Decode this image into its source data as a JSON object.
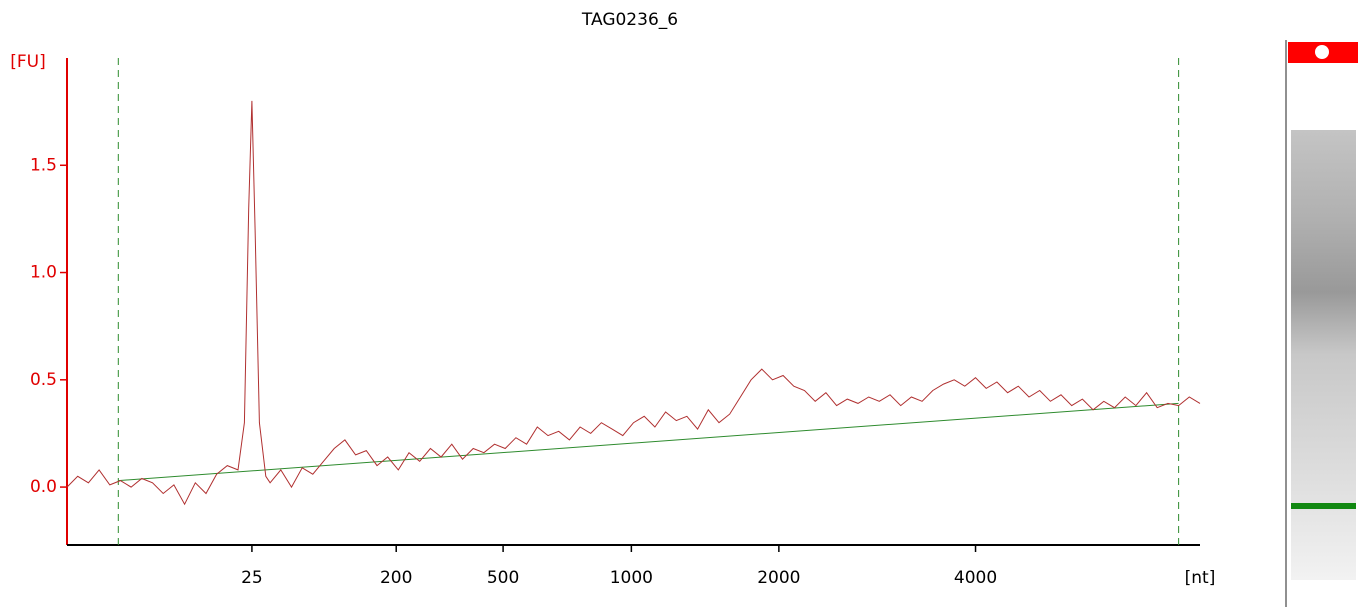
{
  "chart_data": {
    "type": "line",
    "title": "TAG0236_6",
    "y_label": "[FU]",
    "x_label": "[nt]",
    "x": [
      17,
      17.5,
      18,
      18.5,
      19,
      19.5,
      20,
      20.5,
      21,
      21.5,
      22,
      22.5,
      23,
      23.5,
      24,
      24.5,
      25,
      25.3,
      25.5,
      25.65,
      25.8,
      26.0,
      26.3,
      26.5,
      27,
      27.5,
      28,
      28.5,
      29,
      29.5,
      30,
      30.5,
      31,
      31.5,
      32,
      32.5,
      33,
      33.5,
      34,
      34.5,
      35,
      35.5,
      36,
      36.5,
      37,
      37.5,
      38,
      38.5,
      39,
      39.5,
      40,
      40.5,
      41,
      41.5,
      42,
      42.5,
      43,
      43.5,
      44,
      44.5,
      45,
      45.5,
      46,
      46.5,
      47,
      47.5,
      48,
      48.5,
      49,
      49.5,
      50,
      50.5,
      51,
      51.5,
      52,
      52.5,
      53,
      53.5,
      54,
      54.5,
      55,
      55.5,
      56,
      56.5,
      57,
      57.5,
      58,
      58.5,
      59,
      59.5,
      60,
      60.5,
      61,
      61.5,
      62,
      62.5,
      63,
      63.5,
      64,
      64.5,
      65,
      65.5,
      66,
      66.5,
      67,
      67.5,
      68,
      68.5,
      69,
      69.5,
      70
    ],
    "series": [
      {
        "color": "#b03030",
        "values": [
          0.0,
          0.05,
          0.02,
          0.08,
          0.01,
          0.03,
          0.0,
          0.04,
          0.02,
          -0.03,
          0.01,
          -0.08,
          0.02,
          -0.03,
          0.06,
          0.1,
          0.08,
          0.3,
          1.3,
          1.8,
          1.2,
          0.3,
          0.05,
          0.02,
          0.08,
          0.0,
          0.09,
          0.06,
          0.12,
          0.18,
          0.22,
          0.15,
          0.17,
          0.1,
          0.14,
          0.08,
          0.16,
          0.12,
          0.18,
          0.14,
          0.2,
          0.13,
          0.18,
          0.16,
          0.2,
          0.18,
          0.23,
          0.2,
          0.28,
          0.24,
          0.26,
          0.22,
          0.28,
          0.25,
          0.3,
          0.27,
          0.24,
          0.3,
          0.33,
          0.28,
          0.35,
          0.31,
          0.33,
          0.27,
          0.36,
          0.3,
          0.34,
          0.42,
          0.5,
          0.55,
          0.5,
          0.52,
          0.47,
          0.45,
          0.4,
          0.44,
          0.38,
          0.41,
          0.39,
          0.42,
          0.4,
          0.43,
          0.38,
          0.42,
          0.4,
          0.45,
          0.48,
          0.5,
          0.47,
          0.51,
          0.46,
          0.49,
          0.44,
          0.47,
          0.42,
          0.45,
          0.4,
          0.43,
          0.38,
          0.41,
          0.36,
          0.4,
          0.37,
          0.42,
          0.38,
          0.44,
          0.37,
          0.39,
          0.38,
          0.42,
          0.39
        ]
      }
    ],
    "baseline": {
      "color": "#2e8b2e",
      "x": [
        19.4,
        69.0
      ],
      "values": [
        0.03,
        0.39
      ]
    },
    "markers": {
      "color": "#2e8b2e",
      "x": [
        19.4,
        69.0
      ]
    },
    "xlim": [
      17,
      70
    ],
    "xticks": [
      {
        "value": 25.65,
        "label": "25"
      },
      {
        "value": 32.4,
        "label": "200"
      },
      {
        "value": 37.4,
        "label": "500"
      },
      {
        "value": 43.4,
        "label": "1000"
      },
      {
        "value": 50.3,
        "label": "2000"
      },
      {
        "value": 59.5,
        "label": "4000"
      }
    ],
    "ylim": [
      -0.27,
      2.0
    ],
    "yticks": [
      {
        "value": 0,
        "label": "0.0"
      },
      {
        "value": 0.5,
        "label": "0.5"
      },
      {
        "value": 1.0,
        "label": "1.0"
      },
      {
        "value": 1.5,
        "label": "1.5"
      }
    ]
  }
}
